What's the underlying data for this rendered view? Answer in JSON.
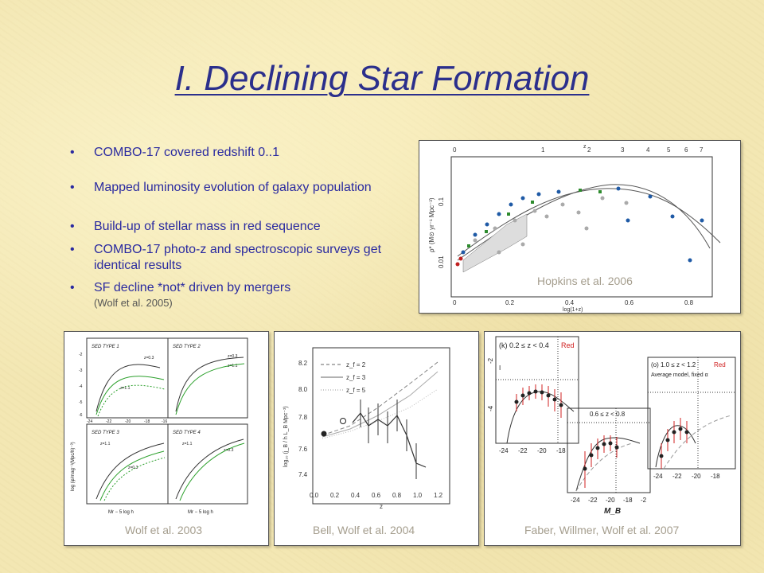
{
  "slide": {
    "title": "I. Declining Star Formation",
    "bullets": [
      {
        "text": "COMBO-17 covered redshift 0..1",
        "note": ""
      },
      {
        "text": "Mapped luminosity evolution of galaxy population",
        "note": ""
      },
      {
        "text": "Build-up of stellar mass in red sequence",
        "note": ""
      },
      {
        "text": "COMBO-17 photo-z and spectroscopic surveys get identical results",
        "note": ""
      },
      {
        "text": "SF decline *not* driven by mergers",
        "note": "(Wolf et al. 2005)"
      }
    ],
    "bullet_glyph": "•",
    "colors": {
      "title": "#2b2f8c",
      "bullets": "#2a2aa0",
      "caption": "#a59e8e",
      "background": "#f3e7b3"
    }
  },
  "figures": {
    "hopkins": {
      "caption": "Hopkins et al. 2006",
      "top_axis_label": "z",
      "top_ticks": [
        "0",
        "1",
        "2",
        "3",
        "4",
        "5",
        "6",
        "7"
      ],
      "bottom_ticks": [
        "0",
        "0.2",
        "0.4",
        "0.6",
        "0.8"
      ],
      "xlabel": "log(1+z)",
      "ylabel": "ρ* (M⊙ yr⁻¹ Mpc⁻³)",
      "y_ticks": [
        "0.01",
        "0.1"
      ]
    },
    "wolf2003": {
      "caption": "Wolf et al. 2003",
      "ylabel": "log (φ/mag⁻¹(Mpc/h)⁻³)",
      "xlabel": "Mr − 5 log h",
      "panels": [
        {
          "label": "SED TYPE 1",
          "z_hi": "z=0.3",
          "z_lo": "z=1.1"
        },
        {
          "label": "SED TYPE 2",
          "z_hi": "z=0.3",
          "z_lo": "z=1.1"
        },
        {
          "label": "SED TYPE 3",
          "z_hi": "z=1.1",
          "z_lo": "z=0.3"
        },
        {
          "label": "SED TYPE 4",
          "z_hi": "z=1.1",
          "z_lo": "z=0.3"
        }
      ],
      "x_ticks": [
        "-24",
        "-22",
        "-20",
        "-18",
        "-16"
      ],
      "y_ticks": [
        "-2",
        "-3",
        "-4",
        "-5",
        "-6"
      ]
    },
    "bell2004": {
      "caption": "Bell, Wolf et al. 2004",
      "ylabel": "log₁₀ (j_B / h L_B Mpc⁻³)",
      "xlabel": "z",
      "legend": [
        "z_f = 2",
        "z_f = 3",
        "z_f = 5"
      ],
      "x_ticks": [
        "0.0",
        "0.2",
        "0.4",
        "0.6",
        "0.8",
        "1.0",
        "1.2"
      ],
      "y_ticks": [
        "7.4",
        "7.6",
        "7.8",
        "8.0",
        "8.2"
      ]
    },
    "faber2007": {
      "caption": "Faber, Willmer, Wolf et al. 2007",
      "panel_k": "(k) 0.2 ≤ z < 0.4",
      "panel_k_tag": "Red",
      "panel_mid": "0.6 ≤ z < 0.8",
      "panel_o": "(o) 1.0 ≤ z < 1.2",
      "panel_o_tag": "Red",
      "panel_o_sub": "Average model, fixed α",
      "xlabel": "M_B",
      "x_ticks_k": [
        "-24",
        "-22",
        "-20",
        "-18"
      ],
      "x_ticks_mid": [
        "-24",
        "-22",
        "-20",
        "-18",
        "-2"
      ],
      "x_ticks_o": [
        "-24",
        "-22",
        "-20",
        "-18"
      ],
      "y_ticks": [
        "-2",
        "-4"
      ],
      "marker_I": "I"
    }
  }
}
